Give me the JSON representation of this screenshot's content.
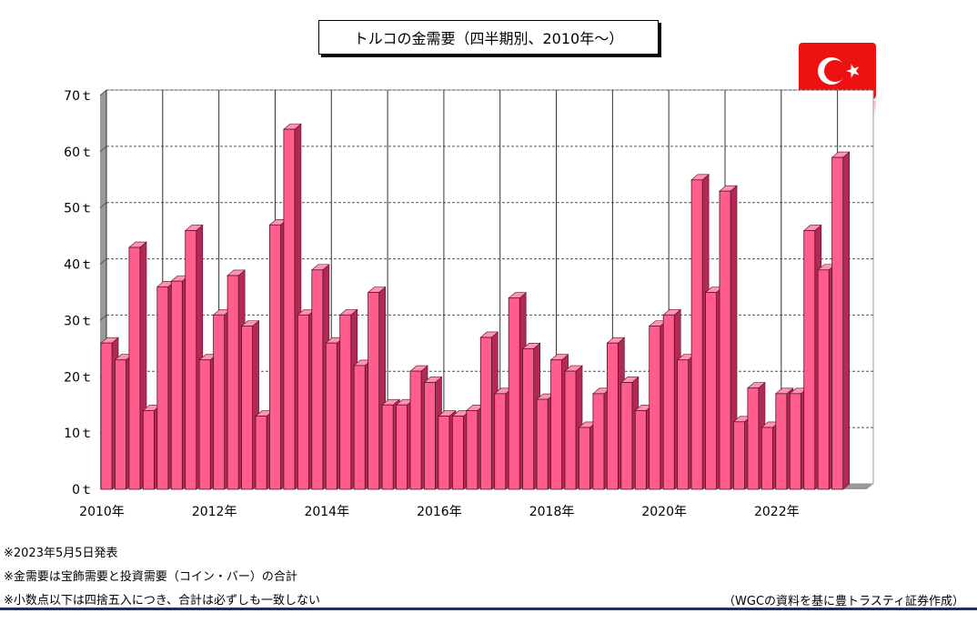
{
  "title": "トルコの金需要（四半期別、2010年～）",
  "notes": [
    "※2023年5月5日発表",
    "※金需要は宝飾需要と投資需要（コイン・バー）の合計",
    "※小数点以下は四捨五入につき、合計は必ずしも一致しない"
  ],
  "source": "（WGCの資料を基に豊トラスティ証券作成）",
  "flag": {
    "icon": "turkey-flag-icon",
    "background": "#ee1111",
    "symbol": "#ffffff"
  },
  "colors": {
    "bar_front": "#ff5e8c",
    "bar_top": "#ff93b3",
    "bar_side": "#b02a55",
    "grid": "#555555"
  },
  "chart_data": {
    "type": "bar",
    "title": "トルコの金需要（四半期別、2010年～）",
    "ylim": [
      0,
      70
    ],
    "y_unit": "ｔ",
    "y_ticks": [
      "0ｔ",
      "10ｔ",
      "20ｔ",
      "30ｔ",
      "40ｔ",
      "50ｔ",
      "60ｔ",
      "70ｔ"
    ],
    "x_tick_labels": [
      "2010年",
      "2012年",
      "2014年",
      "2016年",
      "2018年",
      "2020年",
      "2022年"
    ],
    "categories": [
      "2010Q1",
      "2010Q2",
      "2010Q3",
      "2010Q4",
      "2011Q1",
      "2011Q2",
      "2011Q3",
      "2011Q4",
      "2012Q1",
      "2012Q2",
      "2012Q3",
      "2012Q4",
      "2013Q1",
      "2013Q2",
      "2013Q3",
      "2013Q4",
      "2014Q1",
      "2014Q2",
      "2014Q3",
      "2014Q4",
      "2015Q1",
      "2015Q2",
      "2015Q3",
      "2015Q4",
      "2016Q1",
      "2016Q2",
      "2016Q3",
      "2016Q4",
      "2017Q1",
      "2017Q2",
      "2017Q3",
      "2017Q4",
      "2018Q1",
      "2018Q2",
      "2018Q3",
      "2018Q4",
      "2019Q1",
      "2019Q2",
      "2019Q3",
      "2019Q4",
      "2020Q1",
      "2020Q2",
      "2020Q3",
      "2020Q4",
      "2021Q1",
      "2021Q2",
      "2021Q3",
      "2021Q4",
      "2022Q1",
      "2022Q2",
      "2022Q3",
      "2022Q4",
      "2023Q1"
    ],
    "values": [
      26,
      23,
      43,
      14,
      36,
      37,
      46,
      23,
      31,
      38,
      29,
      13,
      47,
      64,
      31,
      39,
      26,
      31,
      22,
      35,
      15,
      15,
      21,
      19,
      13,
      13,
      14,
      27,
      17,
      34,
      25,
      16,
      23,
      21,
      11,
      17,
      26,
      19,
      14,
      29,
      31,
      23,
      55,
      35,
      53,
      12,
      18,
      11,
      17,
      17,
      46,
      39,
      59
    ],
    "grid": true
  }
}
